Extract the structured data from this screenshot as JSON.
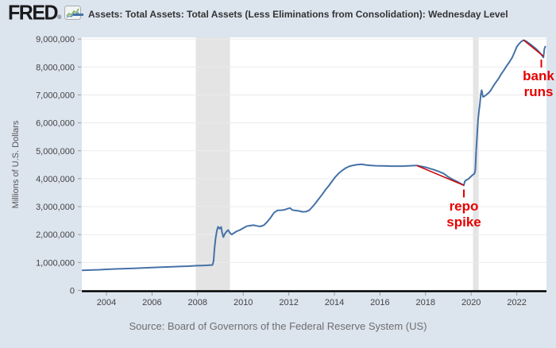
{
  "header": {
    "logo_text": "FRED",
    "registered_mark": "®",
    "logo_icon": "sparkline-chart-icon"
  },
  "footer": {
    "source_text": "Source: Board of Governors of the Federal Reserve System (US)"
  },
  "colors": {
    "page_background": "#dce4ee",
    "plot_background": "#ffffff",
    "series_line": "#4572a7",
    "recession_band": "#e4e4e4",
    "gridline": "#ebebeb",
    "axis_line": "#000000",
    "tick_label": "#444444",
    "annotation_red": "#e60000",
    "trend_red": "#cc0000"
  },
  "chart_data": {
    "type": "line",
    "title": "Assets: Total Assets: Total Assets (Less Eliminations from Consolidation): Wednesday Level",
    "xlabel": "",
    "ylabel": "Millions of U.S. Dollars",
    "ylim": [
      0,
      9000000
    ],
    "xlim_years": [
      2002.92,
      2023.3
    ],
    "grid": "horizontal",
    "legend_position": "top",
    "x_ticks": [
      2004,
      2006,
      2008,
      2010,
      2012,
      2014,
      2016,
      2018,
      2020,
      2022
    ],
    "y_ticks": [
      {
        "value": 0,
        "label": "0"
      },
      {
        "value": 1000000,
        "label": "1,000,000"
      },
      {
        "value": 2000000,
        "label": "2,000,000"
      },
      {
        "value": 3000000,
        "label": "3,000,000"
      },
      {
        "value": 4000000,
        "label": "4,000,000"
      },
      {
        "value": 5000000,
        "label": "5,000,000"
      },
      {
        "value": 6000000,
        "label": "6,000,000"
      },
      {
        "value": 7000000,
        "label": "7,000,000"
      },
      {
        "value": 8000000,
        "label": "8,000,000"
      },
      {
        "value": 9000000,
        "label": "9,000,000"
      }
    ],
    "recession_bands": [
      [
        2007.92,
        2009.42
      ],
      [
        2020.08,
        2020.33
      ]
    ],
    "series": [
      {
        "name": "Assets: Total Assets: Total Assets (Less Eliminations from Consolidation): Wednesday Level",
        "color": "#4572a7",
        "points": [
          [
            2002.95,
            720000
          ],
          [
            2003.3,
            728000
          ],
          [
            2003.7,
            740000
          ],
          [
            2004.0,
            755000
          ],
          [
            2004.4,
            768000
          ],
          [
            2004.8,
            780000
          ],
          [
            2005.2,
            792000
          ],
          [
            2005.6,
            803000
          ],
          [
            2006.0,
            818000
          ],
          [
            2006.4,
            830000
          ],
          [
            2006.8,
            842000
          ],
          [
            2007.2,
            855000
          ],
          [
            2007.6,
            868000
          ],
          [
            2007.95,
            885000
          ],
          [
            2008.2,
            890000
          ],
          [
            2008.45,
            898000
          ],
          [
            2008.65,
            910000
          ],
          [
            2008.7,
            1050000
          ],
          [
            2008.74,
            1480000
          ],
          [
            2008.79,
            1880000
          ],
          [
            2008.85,
            2160000
          ],
          [
            2008.9,
            2280000
          ],
          [
            2008.97,
            2210000
          ],
          [
            2009.03,
            2270000
          ],
          [
            2009.08,
            2050000
          ],
          [
            2009.13,
            1910000
          ],
          [
            2009.2,
            2030000
          ],
          [
            2009.28,
            2120000
          ],
          [
            2009.34,
            2160000
          ],
          [
            2009.42,
            2050000
          ],
          [
            2009.5,
            2000000
          ],
          [
            2009.6,
            2060000
          ],
          [
            2009.72,
            2120000
          ],
          [
            2009.85,
            2160000
          ],
          [
            2010.0,
            2230000
          ],
          [
            2010.15,
            2300000
          ],
          [
            2010.3,
            2320000
          ],
          [
            2010.45,
            2335000
          ],
          [
            2010.6,
            2310000
          ],
          [
            2010.75,
            2290000
          ],
          [
            2010.9,
            2330000
          ],
          [
            2011.05,
            2450000
          ],
          [
            2011.2,
            2600000
          ],
          [
            2011.35,
            2780000
          ],
          [
            2011.5,
            2865000
          ],
          [
            2011.65,
            2870000
          ],
          [
            2011.8,
            2885000
          ],
          [
            2011.95,
            2925000
          ],
          [
            2012.05,
            2950000
          ],
          [
            2012.15,
            2880000
          ],
          [
            2012.3,
            2860000
          ],
          [
            2012.45,
            2845000
          ],
          [
            2012.6,
            2815000
          ],
          [
            2012.75,
            2820000
          ],
          [
            2012.9,
            2870000
          ],
          [
            2013.0,
            2960000
          ],
          [
            2013.15,
            3100000
          ],
          [
            2013.3,
            3260000
          ],
          [
            2013.45,
            3420000
          ],
          [
            2013.6,
            3590000
          ],
          [
            2013.75,
            3740000
          ],
          [
            2013.9,
            3910000
          ],
          [
            2014.05,
            4070000
          ],
          [
            2014.2,
            4200000
          ],
          [
            2014.35,
            4300000
          ],
          [
            2014.5,
            4380000
          ],
          [
            2014.65,
            4440000
          ],
          [
            2014.8,
            4475000
          ],
          [
            2015.0,
            4500000
          ],
          [
            2015.2,
            4515000
          ],
          [
            2015.4,
            4490000
          ],
          [
            2015.6,
            4475000
          ],
          [
            2015.8,
            4465000
          ],
          [
            2016.0,
            4460000
          ],
          [
            2016.25,
            4455000
          ],
          [
            2016.5,
            4450000
          ],
          [
            2016.75,
            4450000
          ],
          [
            2017.0,
            4450000
          ],
          [
            2017.25,
            4460000
          ],
          [
            2017.5,
            4470000
          ],
          [
            2017.62,
            4470000
          ],
          [
            2017.8,
            4440000
          ],
          [
            2018.0,
            4410000
          ],
          [
            2018.2,
            4360000
          ],
          [
            2018.4,
            4310000
          ],
          [
            2018.6,
            4250000
          ],
          [
            2018.8,
            4180000
          ],
          [
            2019.0,
            4060000
          ],
          [
            2019.2,
            3970000
          ],
          [
            2019.4,
            3890000
          ],
          [
            2019.55,
            3820000
          ],
          [
            2019.68,
            3760000
          ],
          [
            2019.72,
            3910000
          ],
          [
            2019.78,
            3950000
          ],
          [
            2019.86,
            3980000
          ],
          [
            2019.94,
            4040000
          ],
          [
            2020.02,
            4100000
          ],
          [
            2020.09,
            4150000
          ],
          [
            2020.14,
            4175000
          ],
          [
            2020.18,
            4300000
          ],
          [
            2020.22,
            5010000
          ],
          [
            2020.26,
            5560000
          ],
          [
            2020.3,
            6080000
          ],
          [
            2020.34,
            6420000
          ],
          [
            2020.38,
            6650000
          ],
          [
            2020.42,
            7010000
          ],
          [
            2020.46,
            7170000
          ],
          [
            2020.52,
            6930000
          ],
          [
            2020.58,
            6950000
          ],
          [
            2020.66,
            7000000
          ],
          [
            2020.75,
            7060000
          ],
          [
            2020.85,
            7150000
          ],
          [
            2020.95,
            7290000
          ],
          [
            2021.05,
            7410000
          ],
          [
            2021.18,
            7560000
          ],
          [
            2021.3,
            7720000
          ],
          [
            2021.42,
            7870000
          ],
          [
            2021.55,
            8030000
          ],
          [
            2021.68,
            8180000
          ],
          [
            2021.8,
            8340000
          ],
          [
            2021.9,
            8520000
          ],
          [
            2022.0,
            8720000
          ],
          [
            2022.1,
            8830000
          ],
          [
            2022.2,
            8910000
          ],
          [
            2022.3,
            8960000
          ],
          [
            2022.42,
            8915000
          ],
          [
            2022.55,
            8840000
          ],
          [
            2022.68,
            8760000
          ],
          [
            2022.8,
            8680000
          ],
          [
            2022.92,
            8590000
          ],
          [
            2023.02,
            8500000
          ],
          [
            2023.1,
            8420000
          ],
          [
            2023.17,
            8340000
          ],
          [
            2023.21,
            8640000
          ],
          [
            2023.25,
            8730000
          ]
        ]
      }
    ],
    "trend_lines": [
      {
        "name": "balance-sheet-runoff-trend",
        "color": "#cc0000",
        "from": [
          2017.62,
          4470000
        ],
        "to": [
          2019.68,
          3760000
        ]
      },
      {
        "name": "quantitative-tightening-trend",
        "color": "#cc0000",
        "from": [
          2022.3,
          8960000
        ],
        "to": [
          2023.18,
          8380000
        ]
      }
    ],
    "annotations": [
      {
        "id": "repo-spike",
        "lines": [
          "repo",
          "spike"
        ]
      },
      {
        "id": "bank-runs",
        "lines": [
          "bank",
          "runs"
        ]
      }
    ]
  }
}
